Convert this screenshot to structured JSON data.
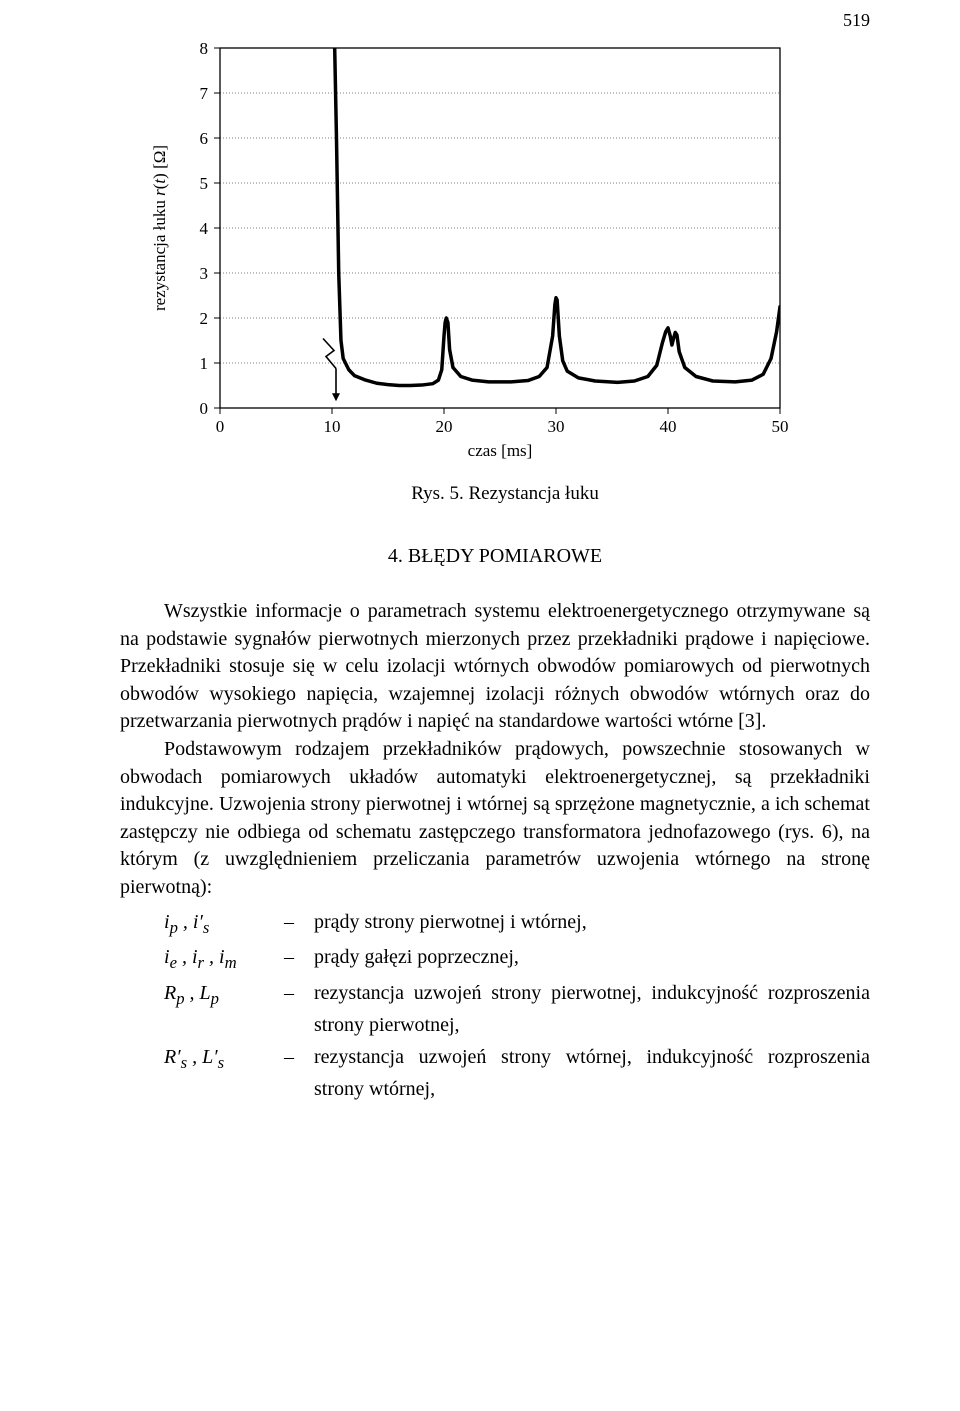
{
  "page_number": "519",
  "figure": {
    "type": "line",
    "x_label": "czas [ms]",
    "y_label": "rezystancja łuku r(t) [Ω]",
    "xlim": [
      0,
      50
    ],
    "ylim": [
      0,
      8
    ],
    "xticks": [
      0,
      10,
      20,
      30,
      40,
      50
    ],
    "yticks": [
      0,
      1,
      2,
      3,
      4,
      5,
      6,
      7,
      8
    ],
    "background_color": "#ffffff",
    "frame_color": "#000000",
    "grid_color": "#808080",
    "grid_dash": "1,2",
    "line_color": "#000000",
    "line_width": 3.5,
    "fontsize_ticks": 17,
    "fontsize_label": 17,
    "arrow_symbol_x": 10,
    "arrow_symbol_y_from": 1.1,
    "arrow_symbol_y_to": 0.15,
    "points": [
      [
        0,
        8.5
      ],
      [
        7.8,
        8.5
      ],
      [
        7.8,
        8.5
      ],
      [
        10,
        8.5
      ],
      [
        10.2,
        8.5
      ],
      [
        10.4,
        6.0
      ],
      [
        10.6,
        3.0
      ],
      [
        10.8,
        1.5
      ],
      [
        11.0,
        1.1
      ],
      [
        11.5,
        0.85
      ],
      [
        12,
        0.72
      ],
      [
        13,
        0.62
      ],
      [
        14,
        0.55
      ],
      [
        15,
        0.52
      ],
      [
        16,
        0.5
      ],
      [
        17,
        0.5
      ],
      [
        18,
        0.51
      ],
      [
        19,
        0.54
      ],
      [
        19.5,
        0.62
      ],
      [
        19.8,
        0.85
      ],
      [
        20,
        1.6
      ],
      [
        20.1,
        1.9
      ],
      [
        20.2,
        2.0
      ],
      [
        20.35,
        1.9
      ],
      [
        20.5,
        1.3
      ],
      [
        20.8,
        0.9
      ],
      [
        21.5,
        0.7
      ],
      [
        22.5,
        0.62
      ],
      [
        24,
        0.58
      ],
      [
        26,
        0.58
      ],
      [
        27.5,
        0.61
      ],
      [
        28.5,
        0.7
      ],
      [
        29.2,
        0.9
      ],
      [
        29.7,
        1.6
      ],
      [
        29.9,
        2.3
      ],
      [
        30.0,
        2.45
      ],
      [
        30.1,
        2.4
      ],
      [
        30.3,
        1.6
      ],
      [
        30.6,
        1.05
      ],
      [
        31.0,
        0.82
      ],
      [
        32.0,
        0.67
      ],
      [
        33.5,
        0.6
      ],
      [
        35.5,
        0.57
      ],
      [
        37.0,
        0.6
      ],
      [
        38.2,
        0.7
      ],
      [
        39.0,
        0.95
      ],
      [
        39.5,
        1.45
      ],
      [
        39.8,
        1.7
      ],
      [
        40.0,
        1.78
      ],
      [
        40.2,
        1.6
      ],
      [
        40.35,
        1.4
      ],
      [
        40.5,
        1.55
      ],
      [
        40.65,
        1.68
      ],
      [
        40.8,
        1.62
      ],
      [
        41.0,
        1.25
      ],
      [
        41.5,
        0.9
      ],
      [
        42.5,
        0.7
      ],
      [
        44.0,
        0.6
      ],
      [
        46.0,
        0.58
      ],
      [
        47.5,
        0.62
      ],
      [
        48.5,
        0.75
      ],
      [
        49.2,
        1.1
      ],
      [
        49.7,
        1.7
      ],
      [
        50.0,
        2.25
      ]
    ]
  },
  "caption": "Rys. 5. Rezystancja łuku",
  "section": "4. BŁĘDY POMIAROWE",
  "paragraphs": [
    "Wszystkie informacje o parametrach systemu elektroenergetycznego otrzymywane są na podstawie sygnałów pierwotnych mierzonych przez przekładniki prądowe i napięciowe. Przekładniki stosuje się w celu izolacji wtórnych obwodów pomiarowych od pierwotnych obwodów wysokiego napięcia, wzajemnej izolacji różnych obwodów wtórnych oraz do przetwarzania pierwotnych prądów i napięć na standardowe wartości wtórne [3].",
    "Podstawowym rodzajem przekładników prądowych, powszechnie stosowanych w obwodach pomiarowych układów automatyki elektroenergetycznej, są przekładniki indukcyjne. Uzwojenia strony pierwotnej i wtórnej są sprzężone magnetycznie, a ich schemat zastępczy nie odbiega od schematu zastępczego transformatora jednofazowego (rys. 6), na którym (z uwzględnieniem przeliczania parametrów uzwojenia wtórnego na stronę pierwotną):"
  ],
  "definitions": [
    {
      "symbol_html": "i<sub>p</sub> , i′<sub>s</sub>",
      "text": "prądy strony pierwotnej i wtórnej,"
    },
    {
      "symbol_html": "i<sub>e</sub> , i<sub>r</sub> , i<sub>m</sub>",
      "text": "prądy gałęzi poprzecznej,"
    },
    {
      "symbol_html": "R<sub>p</sub> , L<sub>p</sub>",
      "text": "rezystancja uzwojeń strony pierwotnej, indukcyjność rozproszenia strony pierwotnej,"
    },
    {
      "symbol_html": "R′<sub>s</sub> , L′<sub>s</sub>",
      "text": "rezystancja uzwojeń strony wtórnej, indukcyjność rozproszenia strony wtórnej,"
    }
  ]
}
